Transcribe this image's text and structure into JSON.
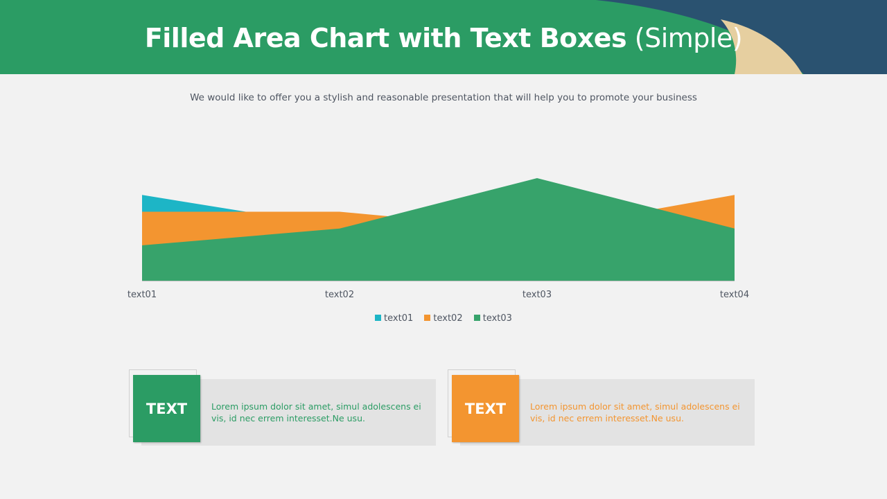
{
  "header": {
    "title_main": "Filled Area Chart with Text Boxes",
    "title_suffix": "(Simple)",
    "subtitle": "We would like to offer you a stylish and reasonable presentation that will help you to promote your business"
  },
  "colors": {
    "green": "#37a36b",
    "orange": "#f39530",
    "teal": "#1db5c6",
    "navy": "#2a5270",
    "sand": "#e6cfa0",
    "header_green": "#2b9c64"
  },
  "chart_data": {
    "type": "area",
    "categories": [
      "text01",
      "text02",
      "text03",
      "text04"
    ],
    "series": [
      {
        "name": "text01",
        "values": [
          5.1,
          3.2,
          2.5,
          2.5
        ],
        "color": "#1db5c6"
      },
      {
        "name": "text02",
        "values": [
          4.1,
          4.1,
          3.0,
          5.1
        ],
        "color": "#f39530"
      },
      {
        "name": "text03",
        "values": [
          2.1,
          3.1,
          6.1,
          3.1
        ],
        "color": "#37a36b"
      }
    ],
    "ylim": [
      0,
      6.1
    ],
    "grid": false,
    "legend": "bottom"
  },
  "cards": [
    {
      "label": "TEXT",
      "text": "Lorem ipsum dolor sit amet, simul adolescens ei vis, id nec errem interesset.Ne usu.",
      "color": "#2b9c64"
    },
    {
      "label": "TEXT",
      "text": "Lorem ipsum dolor sit amet, simul adolescens ei vis, id nec errem interesset.Ne usu.",
      "color": "#f39530"
    }
  ]
}
